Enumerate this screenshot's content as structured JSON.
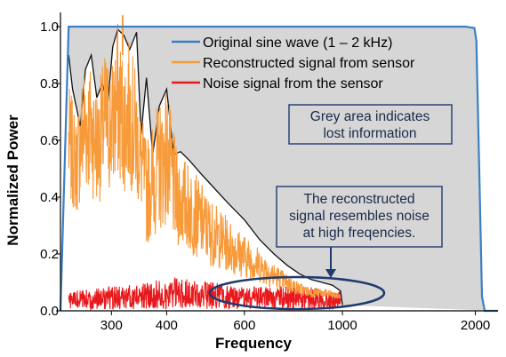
{
  "chart_data": {
    "type": "line",
    "xlabel": "Frequency",
    "ylabel": "Normalized Power",
    "x_tick_labels": [
      "300",
      "400",
      "600",
      "1000",
      "2000"
    ],
    "x_ticks": [
      300,
      400,
      600,
      1000,
      2000
    ],
    "y_tick_labels": [
      "0.0",
      "0.2",
      "0.4",
      "0.6",
      "0.8",
      "1.0"
    ],
    "y_ticks": [
      0.0,
      0.2,
      0.4,
      0.6,
      0.8,
      1.0
    ],
    "xlim": [
      230,
      2250
    ],
    "ylim": [
      0,
      1.05
    ],
    "x_scale": "log",
    "grid": false,
    "legend_position": "top-right",
    "series": [
      {
        "name": "Original sine wave (1 – 2 kHz)",
        "color": "#3b7fc4",
        "x": [
          230,
          240,
          260,
          300,
          500,
          1000,
          1500,
          1900,
          1990,
          2010,
          2040,
          2070,
          2100,
          2250
        ],
        "y": [
          0.0,
          1.0,
          1.0,
          1.0,
          1.0,
          1.0,
          1.0,
          1.0,
          0.995,
          0.95,
          0.5,
          0.05,
          0.0,
          0.0
        ]
      },
      {
        "name": "Reconstructed signal from sensor",
        "color": "#f79a3a",
        "x": [
          240,
          250,
          260,
          270,
          280,
          290,
          300,
          310,
          320,
          330,
          340,
          350,
          360,
          380,
          400,
          420,
          450,
          480,
          500,
          550,
          600,
          650,
          700,
          750,
          800,
          850,
          900,
          950,
          980
        ],
        "y": [
          0.8,
          0.68,
          0.9,
          0.87,
          0.78,
          0.92,
          0.88,
          1.02,
          0.9,
          0.96,
          0.85,
          0.7,
          0.6,
          0.72,
          0.8,
          0.58,
          0.52,
          0.45,
          0.4,
          0.33,
          0.27,
          0.22,
          0.17,
          0.13,
          0.1,
          0.08,
          0.08,
          0.07,
          0.06
        ]
      },
      {
        "name": "Noise signal from the sensor",
        "color": "#e8191c",
        "x": [
          240,
          300,
          360,
          400,
          500,
          600,
          700,
          800,
          900,
          980
        ],
        "y": [
          0.04,
          0.05,
          0.06,
          0.07,
          0.06,
          0.05,
          0.05,
          0.05,
          0.05,
          0.04
        ]
      }
    ],
    "envelope": {
      "x": [
        240,
        245,
        255,
        262,
        270,
        278,
        286,
        294,
        302,
        310,
        320,
        330,
        342,
        350,
        360,
        372,
        385,
        400,
        415,
        430,
        450,
        480,
        500,
        550,
        600,
        650,
        700,
        750,
        800,
        850,
        900,
        950,
        990,
        1000
      ],
      "y": [
        0.9,
        0.78,
        0.65,
        0.85,
        0.9,
        0.75,
        0.8,
        0.72,
        0.93,
        0.99,
        0.97,
        0.92,
        0.98,
        0.62,
        0.82,
        0.55,
        0.72,
        0.78,
        0.55,
        0.56,
        0.53,
        0.48,
        0.45,
        0.38,
        0.32,
        0.25,
        0.2,
        0.16,
        0.13,
        0.11,
        0.1,
        0.09,
        0.07,
        0.02
      ]
    },
    "annotations": [
      {
        "lines": [
          "Grey area indicates",
          "lost information"
        ]
      },
      {
        "lines": [
          "The reconstructed",
          "signal resembles noise",
          "at high freqencies."
        ]
      }
    ]
  },
  "colors": {
    "lost_area": "#d6d6d6",
    "annotation_border": "#1f3a6e",
    "ellipse": "#1f3a6e"
  }
}
